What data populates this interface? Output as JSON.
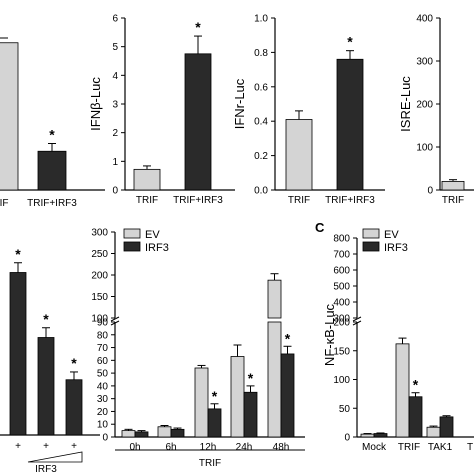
{
  "panel_labels": {
    "c": "C"
  },
  "colors": {
    "ev": "#d4d4d4",
    "irf3": "#2a2a2a",
    "stroke": "#000000"
  },
  "chart_data": [
    {
      "id": "p1",
      "type": "bar",
      "partial": true,
      "categories": [
        "IF",
        "TRIF+IRF3"
      ],
      "ylim": [
        0,
        1.0
      ],
      "series": [
        {
          "values": [
            0.95,
            0.25
          ],
          "errors": [
            0.0,
            0.05
          ],
          "colors": [
            "ev",
            "irf3"
          ]
        }
      ],
      "stars": [
        "",
        "*"
      ]
    },
    {
      "id": "p2",
      "type": "bar",
      "ylabel": "IFNβ-Luc",
      "ylim": [
        0,
        6
      ],
      "yticks": [
        0,
        1,
        2,
        3,
        4,
        5,
        6
      ],
      "categories": [
        "TRIF",
        "TRIF+IRF3"
      ],
      "series": [
        {
          "values": [
            0.72,
            4.75
          ],
          "errors": [
            0.12,
            0.62
          ],
          "colors": [
            "ev",
            "irf3"
          ]
        }
      ],
      "stars": [
        "",
        "*"
      ]
    },
    {
      "id": "p3",
      "type": "bar",
      "ylabel": "IFNr-Luc",
      "ylim": [
        0,
        1.0
      ],
      "yticks": [
        "0.0",
        "0.2",
        "0.4",
        "0.6",
        "0.8",
        "1.0"
      ],
      "categories": [
        "TRIF",
        "TRIF+IRF3"
      ],
      "series": [
        {
          "values": [
            0.41,
            0.76
          ],
          "errors": [
            0.05,
            0.05
          ],
          "colors": [
            "ev",
            "irf3"
          ]
        }
      ],
      "stars": [
        "",
        "*"
      ]
    },
    {
      "id": "p4",
      "type": "bar",
      "partial": true,
      "ylabel": "ISRE-Luc",
      "ylim": [
        0,
        400
      ],
      "yticks": [
        0,
        100,
        200,
        300,
        400
      ],
      "categories": [
        "TRIF"
      ],
      "series": [
        {
          "values": [
            20
          ],
          "errors": [
            4
          ],
          "colors": [
            "ev"
          ]
        }
      ],
      "stars": [
        ""
      ]
    },
    {
      "id": "p5",
      "type": "bar",
      "partial": true,
      "categories": [
        "+",
        "+",
        "+"
      ],
      "group_label": "IRF3",
      "ylim": [
        0,
        30
      ],
      "series": [
        {
          "values": [
            25,
            15,
            8.5
          ],
          "errors": [
            1.5,
            1.5,
            1.2
          ],
          "colors": [
            "irf3",
            "irf3",
            "irf3"
          ]
        }
      ],
      "stars": [
        "*",
        "*",
        "*"
      ]
    },
    {
      "id": "p6",
      "type": "bar",
      "legend": [
        "EV",
        "IRF3"
      ],
      "xlabel": "TRIF",
      "categories": [
        "0h",
        "6h",
        "12h",
        "24h",
        "48h"
      ],
      "yticks_lower": [
        0,
        10,
        20,
        30,
        40,
        50,
        60,
        70,
        80,
        90
      ],
      "yticks_upper": [
        100,
        150,
        200,
        250,
        300
      ],
      "series": [
        {
          "name": "EV",
          "values": [
            5,
            8,
            54,
            63,
            188
          ],
          "errors": [
            1,
            1,
            2,
            9,
            15
          ]
        },
        {
          "name": "IRF3",
          "values": [
            4,
            6,
            22,
            35,
            65
          ],
          "errors": [
            1,
            1,
            4,
            5,
            6
          ]
        }
      ],
      "stars": [
        [
          "",
          ""
        ],
        [
          "",
          ""
        ],
        [
          "",
          "*"
        ],
        [
          "",
          "*"
        ],
        [
          "",
          "*"
        ]
      ]
    },
    {
      "id": "p7",
      "type": "bar",
      "partial": true,
      "legend": [
        "EV",
        "IRF3"
      ],
      "ylabel": "NF-κB-Luc",
      "categories": [
        "Mock",
        "TRIF",
        "TAK1",
        "T"
      ],
      "yticks_lower": [
        0,
        50,
        100,
        150,
        200
      ],
      "yticks_upper": [
        300,
        400,
        500,
        600,
        700,
        800
      ],
      "series": [
        {
          "name": "EV",
          "values": [
            5,
            162,
            17,
            0
          ],
          "errors": [
            1,
            10,
            2,
            0
          ]
        },
        {
          "name": "IRF3",
          "values": [
            6,
            70,
            35,
            0
          ],
          "errors": [
            1,
            7,
            2,
            0
          ]
        }
      ],
      "stars": [
        [
          "",
          ""
        ],
        [
          "",
          "*"
        ],
        [
          "",
          ""
        ],
        [
          "",
          ""
        ]
      ]
    }
  ]
}
